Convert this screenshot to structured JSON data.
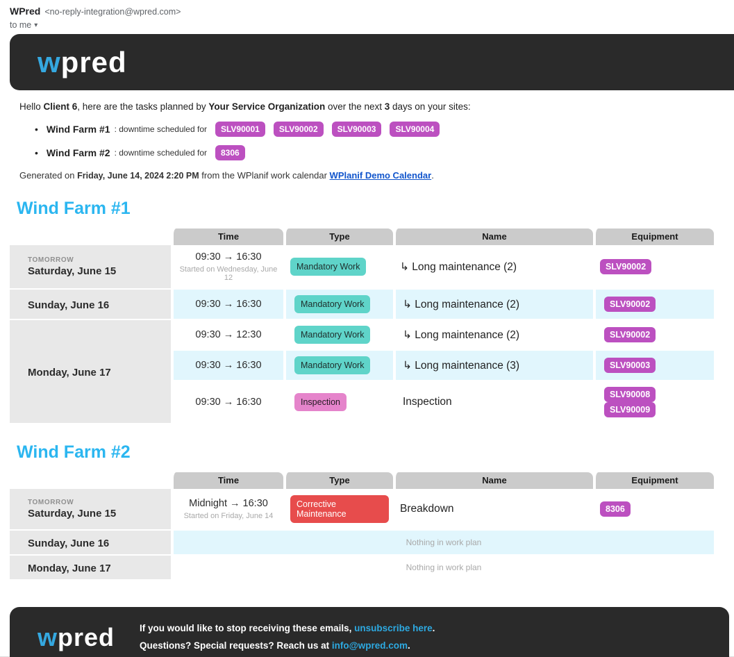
{
  "email_header": {
    "sender_name": "WPred",
    "sender_address": "<no-reply-integration@wpred.com>",
    "recipient_label": "to me",
    "caret_icon": "▾"
  },
  "brand": {
    "logo_first_letter": "w",
    "logo_rest": "pred"
  },
  "intro": {
    "greeting_prefix": "Hello ",
    "client_name": "Client 6",
    "after_client": ", here are the tasks planned by ",
    "organization": "Your Service Organization",
    "after_org": " over the next ",
    "days_count": "3",
    "suffix": " days on your sites:",
    "bullets": [
      {
        "site": "Wind Farm #1",
        "text": ": downtime scheduled for",
        "equipment": [
          "SLV90001",
          "SLV90002",
          "SLV90003",
          "SLV90004"
        ]
      },
      {
        "site": "Wind Farm #2",
        "text": ": downtime scheduled for",
        "equipment": [
          "8306"
        ]
      }
    ],
    "generated_prefix": "Generated on ",
    "generated_date": "Friday, June 14, 2024 2:20 PM",
    "generated_middle": " from the WPlanif work calendar ",
    "calendar_link": "WPlanif Demo Calendar",
    "generated_suffix": "."
  },
  "table_headers": [
    "Time",
    "Type",
    "Name",
    "Equipment"
  ],
  "empty_row_text": "Nothing in work plan",
  "sections": [
    {
      "title": "Wind Farm #1",
      "rows": [
        {
          "day_tag": "TOMORROW",
          "day_label": "Saturday, June 15",
          "entries": [
            {
              "time": "09:30 → 16:30",
              "time_note": "Started on Wednesday, June 12",
              "type": "Mandatory Work",
              "type_style": "mandatory",
              "name": "↳ Long maintenance (2)",
              "equipment": [
                "SLV90002"
              ]
            }
          ]
        },
        {
          "day_tag": "",
          "day_label": "Sunday, June 16",
          "entries": [
            {
              "time": "09:30 → 16:30",
              "time_note": "",
              "type": "Mandatory Work",
              "type_style": "mandatory",
              "name": "↳ Long maintenance (2)",
              "equipment": [
                "SLV90002"
              ]
            }
          ]
        },
        {
          "day_tag": "",
          "day_label": "Monday, June 17",
          "entries": [
            {
              "time": "09:30 → 12:30",
              "time_note": "",
              "type": "Mandatory Work",
              "type_style": "mandatory",
              "name": "↳ Long maintenance (2)",
              "equipment": [
                "SLV90002"
              ]
            },
            {
              "time": "09:30 → 16:30",
              "time_note": "",
              "type": "Mandatory Work",
              "type_style": "mandatory",
              "name": "↳ Long maintenance (3)",
              "equipment": [
                "SLV90003"
              ]
            },
            {
              "time": "09:30 → 16:30",
              "time_note": "",
              "type": "Inspection",
              "type_style": "inspection",
              "name": "Inspection",
              "equipment": [
                "SLV90008",
                "SLV90009"
              ]
            }
          ]
        }
      ]
    },
    {
      "title": "Wind Farm #2",
      "rows": [
        {
          "day_tag": "TOMORROW",
          "day_label": "Saturday, June 15",
          "entries": [
            {
              "time": "Midnight → 16:30",
              "time_note": "Started on Friday, June 14",
              "type": "Corrective Maintenance",
              "type_style": "corrective",
              "name": "Breakdown",
              "equipment": [
                "8306"
              ]
            }
          ]
        },
        {
          "day_tag": "",
          "day_label": "Sunday, June 16",
          "entries": []
        },
        {
          "day_tag": "",
          "day_label": "Monday, June 17",
          "entries": []
        }
      ]
    }
  ],
  "footer": {
    "line1_prefix": "If you would like to stop receiving these emails, ",
    "line1_link": "unsubscribe here",
    "line1_suffix": ".",
    "line2_prefix": "Questions? Special requests? Reach us at ",
    "line2_link": "info@wpred.com",
    "line2_suffix": "."
  },
  "colors": {
    "brand_dark": "#2a2a2a",
    "brand_blue": "#35a8e0",
    "section_heading_cyan": "#2bb6f0",
    "equipment_badge_magenta": "#bc50c0",
    "type_mandatory_teal": "#5fd4c9",
    "type_inspection_pink": "#e584cb",
    "type_corrective_red": "#e74c4c",
    "row_stripe_blue": "#e1f6fd",
    "day_cell_gray": "#e8e8e8",
    "table_header_gray": "#cbcbcb",
    "body_link_blue": "#1155cc",
    "footer_link_blue": "#2da9e1"
  }
}
